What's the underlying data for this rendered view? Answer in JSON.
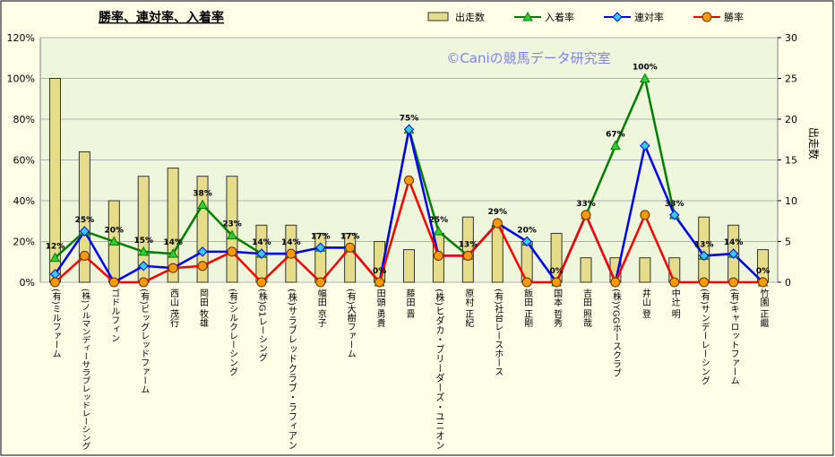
{
  "chart_data": {
    "type": "combo",
    "title": "勝率、連対率、入着率",
    "annotation": "©Caniの競馬データ研究室",
    "y2label": "出走数",
    "categories": [
      "(有)ミルファーム",
      "(株)ノルマンディーサラブレッドレーシング",
      "ゴドルフィン",
      "(有)ビッグレッドファーム",
      "西山 茂行",
      "岡田 牧雄",
      "(有)シルクレーシング",
      "(株)G1レーシング",
      "(株)サラブレッドクラブ・ラフィアン",
      "幅田 京子",
      "(有)大樹ファーム",
      "田頭 勇貴",
      "藤田 晋",
      "(株)ヒダカ・ブリーダーズ・ユニオン",
      "原村 正紀",
      "(有)社台レースホース",
      "飯田 正剛",
      "国本 哲秀",
      "吉田 照哉",
      "(株)YGGホースクラブ",
      "井山 登",
      "中辻 明",
      "(有)サンデーレーシング",
      "(有)キャロットファーム",
      "竹園 正繼"
    ],
    "series": [
      {
        "name": "出走数",
        "type": "bar",
        "axis": "y2",
        "color": "#e6dd8a",
        "values": [
          25,
          16,
          10,
          13,
          14,
          13,
          13,
          7,
          7,
          6,
          6,
          5,
          4,
          6,
          8,
          7,
          5,
          6,
          3,
          3,
          3,
          3,
          8,
          7,
          4
        ]
      },
      {
        "name": "入着率",
        "type": "line",
        "marker": "triangle",
        "color": "#008000",
        "values": [
          12,
          25,
          20,
          15,
          14,
          38,
          23,
          14,
          14,
          17,
          17,
          0,
          75,
          25,
          13,
          29,
          20,
          0,
          33,
          67,
          100,
          33,
          13,
          14,
          0
        ],
        "value_labels": [
          "12%",
          "25%",
          "20%",
          "15%",
          "14%",
          "38%",
          "23%",
          "14%",
          "14%",
          "17%",
          "17%",
          "0%",
          "75%",
          "25%",
          "13%",
          "29%",
          "20%",
          "0%",
          "33%",
          "67%",
          "100%",
          "33%",
          "13%",
          "14%",
          "0%"
        ]
      },
      {
        "name": "連対率",
        "type": "line",
        "marker": "diamond",
        "color": "#0000ff",
        "values": [
          4,
          25,
          0,
          8,
          7,
          15,
          15,
          14,
          14,
          17,
          17,
          0,
          75,
          13,
          13,
          29,
          20,
          0,
          33,
          0,
          67,
          33,
          13,
          14,
          0
        ]
      },
      {
        "name": "勝率",
        "type": "line",
        "marker": "circle",
        "color": "#ff0000",
        "values": [
          0,
          13,
          0,
          0,
          7,
          8,
          15,
          0,
          14,
          0,
          17,
          0,
          50,
          13,
          13,
          29,
          0,
          0,
          33,
          0,
          33,
          0,
          0,
          0,
          0
        ]
      }
    ],
    "ylim": [
      0,
      120
    ],
    "yticks": [
      {
        "value": 0,
        "label": "0%"
      },
      {
        "value": 20,
        "label": "20%"
      },
      {
        "value": 40,
        "label": "40%"
      },
      {
        "value": 60,
        "label": "60%"
      },
      {
        "value": 80,
        "label": "80%"
      },
      {
        "value": 100,
        "label": "100%"
      },
      {
        "value": 120,
        "label": "120%"
      }
    ],
    "y2lim": [
      0,
      30
    ],
    "y2ticks": [
      0,
      5,
      10,
      15,
      20,
      25,
      30
    ],
    "grid": true
  }
}
